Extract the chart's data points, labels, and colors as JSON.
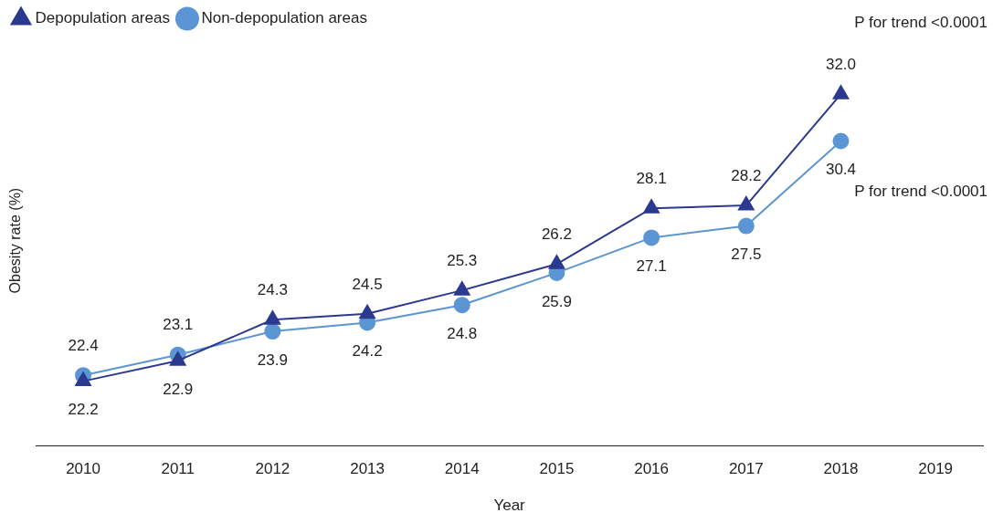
{
  "chart_data": {
    "type": "line",
    "xlabel": "Year",
    "ylabel": "Obesity rate (%)",
    "categories": [
      "2010",
      "2011",
      "2012",
      "2013",
      "2014",
      "2015",
      "2016",
      "2017",
      "2018",
      "2019"
    ],
    "series": [
      {
        "name": "Depopulation areas",
        "color": "#2b3a8f",
        "marker": "triangle",
        "values": [
          22.2,
          22.9,
          24.3,
          24.5,
          25.3,
          26.2,
          28.1,
          28.2,
          32.0,
          null
        ],
        "value_labels": [
          "22.2",
          "22.9",
          "24.3",
          "24.5",
          "25.3",
          "26.2",
          "28.1",
          "28.2",
          "32.0",
          null
        ]
      },
      {
        "name": "Non-depopulation areas",
        "color": "#5b95d3",
        "marker": "circle",
        "values": [
          22.4,
          23.1,
          23.9,
          24.2,
          24.8,
          25.9,
          27.1,
          27.5,
          30.4,
          null
        ],
        "value_labels": [
          "22.4",
          "23.1",
          "23.9",
          "24.2",
          "24.8",
          "25.9",
          "27.1",
          "27.5",
          "30.4",
          null
        ]
      }
    ],
    "legend": "top left",
    "grid": false,
    "line_style": "solid",
    "annotations": [
      "P for trend <0.0001",
      "P for trend <0.0001"
    ]
  }
}
